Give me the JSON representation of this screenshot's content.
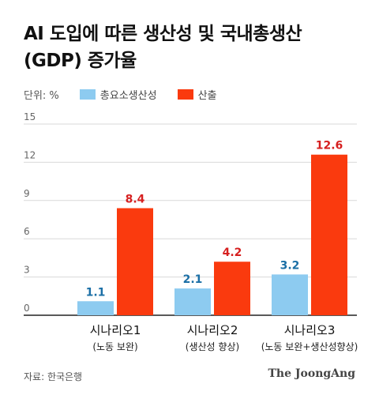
{
  "title": {
    "line1": "AI 도입에 따른 생산성 및 국내총생산",
    "line2": "(GDP) 증가율"
  },
  "legend": {
    "unit": "단위: %",
    "items": [
      {
        "label": "총요소생산성",
        "color": "#8dcbf0"
      },
      {
        "label": "산출",
        "color": "#fa3a0e"
      }
    ]
  },
  "chart_data": {
    "type": "bar",
    "categories": [
      "시나리오1",
      "시나리오2",
      "시나리오3"
    ],
    "sublabels": [
      "(노동 보완)",
      "(생산성 향상)",
      "(노동 보완+생산성향상)"
    ],
    "series": [
      {
        "name": "총요소생산성",
        "values": [
          1.1,
          2.1,
          3.2
        ],
        "color": "#8dcbf0",
        "label_color": "#1b6fa6"
      },
      {
        "name": "산출",
        "values": [
          8.4,
          4.2,
          12.6
        ],
        "color": "#fa3a0e",
        "label_color": "#d61f1f"
      }
    ],
    "yticks": [
      0,
      3,
      6,
      9,
      12,
      15
    ],
    "ylim": [
      0,
      15
    ],
    "grid": true,
    "legend": "top-left"
  },
  "source": "자료: 한국은행",
  "brand": "The JoongAng"
}
